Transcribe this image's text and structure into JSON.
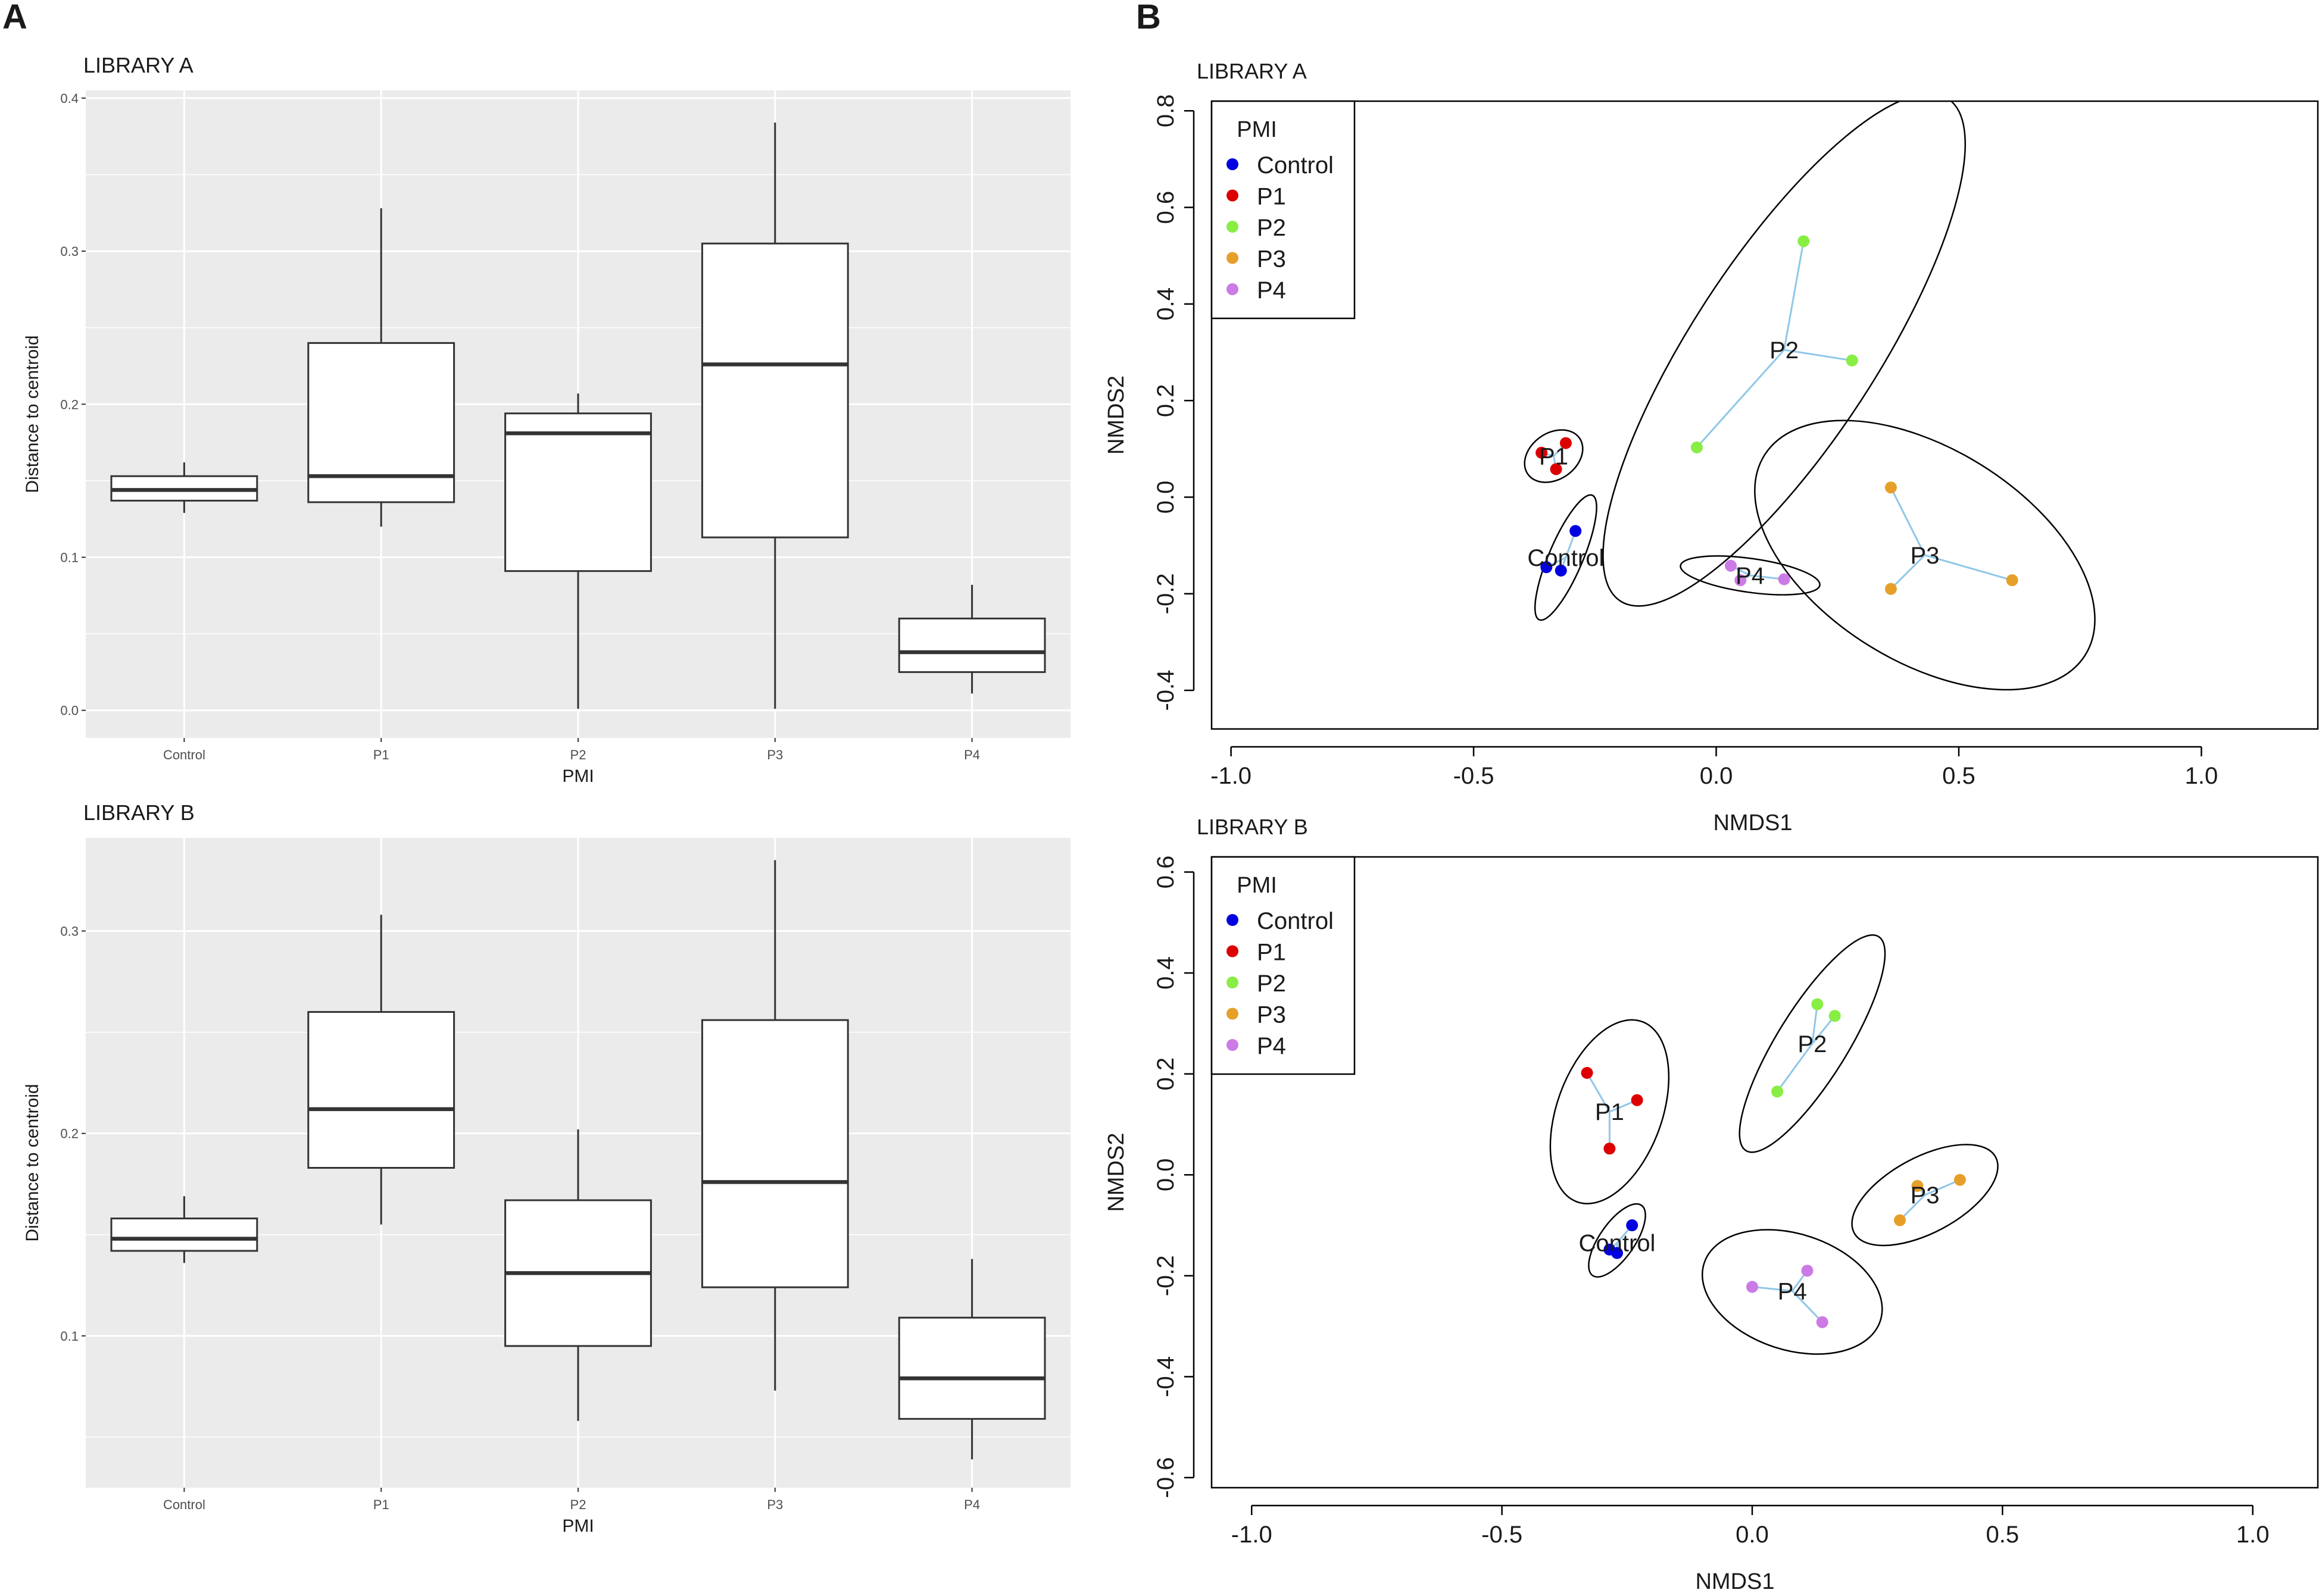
{
  "panel_labels": {
    "left": "A",
    "right": "B"
  },
  "colors": {
    "panel_bg": "#ebebeb",
    "grid": "#ffffff",
    "box_line": "#333333",
    "spider": "#8fc7e8",
    "ellipse": "#000000"
  },
  "chart_data": [
    {
      "type": "box",
      "title": "LIBRARY A",
      "xlabel": "PMI",
      "ylabel": "Distance to centroid",
      "categories": [
        "Control",
        "P1",
        "P2",
        "P3",
        "P4"
      ],
      "ylim": [
        -0.018,
        0.405
      ],
      "yticks": [
        0.0,
        0.1,
        0.2,
        0.3,
        0.4
      ],
      "ytick_labels": [
        "0.0",
        "0.1",
        "0.2",
        "0.3",
        "0.4"
      ],
      "boxes": [
        {
          "min": 0.129,
          "q1": 0.137,
          "median": 0.144,
          "q3": 0.153,
          "max": 0.162
        },
        {
          "min": 0.12,
          "q1": 0.136,
          "median": 0.153,
          "q3": 0.24,
          "max": 0.328
        },
        {
          "min": 0.001,
          "q1": 0.091,
          "median": 0.181,
          "q3": 0.194,
          "max": 0.207
        },
        {
          "min": 0.001,
          "q1": 0.113,
          "median": 0.226,
          "q3": 0.305,
          "max": 0.384
        },
        {
          "min": 0.011,
          "q1": 0.025,
          "median": 0.038,
          "q3": 0.06,
          "max": 0.082
        }
      ]
    },
    {
      "type": "box",
      "title": "LIBRARY B",
      "xlabel": "PMI",
      "ylabel": "Distance to centroid",
      "categories": [
        "Control",
        "P1",
        "P2",
        "P3",
        "P4"
      ],
      "ylim": [
        0.025,
        0.346
      ],
      "yticks": [
        0.1,
        0.2,
        0.3
      ],
      "ytick_labels": [
        "0.1",
        "0.2",
        "0.3"
      ],
      "boxes": [
        {
          "min": 0.136,
          "q1": 0.142,
          "median": 0.148,
          "q3": 0.158,
          "max": 0.169
        },
        {
          "min": 0.155,
          "q1": 0.183,
          "median": 0.212,
          "q3": 0.26,
          "max": 0.308
        },
        {
          "min": 0.058,
          "q1": 0.095,
          "median": 0.131,
          "q3": 0.167,
          "max": 0.202
        },
        {
          "min": 0.073,
          "q1": 0.124,
          "median": 0.176,
          "q3": 0.256,
          "max": 0.335
        },
        {
          "min": 0.039,
          "q1": 0.059,
          "median": 0.079,
          "q3": 0.109,
          "max": 0.138
        }
      ]
    },
    {
      "type": "scatter",
      "title": "LIBRARY A",
      "xlabel": "NMDS1",
      "ylabel": "NMDS2",
      "xlim": [
        -1.04,
        1.24
      ],
      "ylim": [
        -0.48,
        0.82
      ],
      "xticks": [
        -1.0,
        -0.5,
        0.0,
        0.5,
        1.0
      ],
      "xtick_labels": [
        "-1.0",
        "-0.5",
        "0.0",
        "0.5",
        "1.0"
      ],
      "yticks": [
        -0.4,
        -0.2,
        0.0,
        0.2,
        0.4,
        0.6,
        0.8
      ],
      "ytick_labels": [
        "-0.4",
        "-0.2",
        "0.0",
        "0.2",
        "0.4",
        "0.6",
        "0.8"
      ],
      "legend_title": "PMI",
      "legend_position": "top-left",
      "groups": [
        {
          "name": "Control",
          "color": "#0000e0",
          "centroid": [
            -0.31,
            -0.125
          ],
          "points": [
            [
              -0.29,
              -0.07
            ],
            [
              -0.35,
              -0.145
            ],
            [
              -0.32,
              -0.152
            ]
          ],
          "ellipse": {
            "cx": -0.31,
            "cy": -0.125,
            "rx": 0.14,
            "ry": 0.035,
            "angle": 67
          }
        },
        {
          "name": "P1",
          "color": "#dc0000",
          "centroid": [
            -0.335,
            0.085
          ],
          "points": [
            [
              -0.36,
              0.092
            ],
            [
              -0.31,
              0.112
            ],
            [
              -0.33,
              0.058
            ]
          ],
          "ellipse": {
            "cx": -0.335,
            "cy": 0.085,
            "rx": 0.065,
            "ry": 0.048,
            "angle": 35
          }
        },
        {
          "name": "P2",
          "color": "#88ee44",
          "centroid": [
            0.14,
            0.305
          ],
          "points": [
            [
              0.18,
              0.53
            ],
            [
              0.28,
              0.283
            ],
            [
              -0.04,
              0.103
            ]
          ],
          "ellipse": {
            "cx": 0.14,
            "cy": 0.305,
            "rx": 0.62,
            "ry": 0.19,
            "angle": 57
          }
        },
        {
          "name": "P3",
          "color": "#e6a02a",
          "centroid": [
            0.43,
            -0.12
          ],
          "points": [
            [
              0.36,
              0.02
            ],
            [
              0.61,
              -0.172
            ],
            [
              0.36,
              -0.19
            ]
          ],
          "ellipse": {
            "cx": 0.43,
            "cy": -0.12,
            "rx": 0.39,
            "ry": 0.22,
            "angle": -32
          }
        },
        {
          "name": "P4",
          "color": "#cc7ae6",
          "centroid": [
            0.07,
            -0.162
          ],
          "points": [
            [
              0.03,
              -0.142
            ],
            [
              0.14,
              -0.17
            ],
            [
              0.05,
              -0.172
            ]
          ],
          "ellipse": {
            "cx": 0.07,
            "cy": -0.162,
            "rx": 0.145,
            "ry": 0.035,
            "angle": -8
          }
        }
      ]
    },
    {
      "type": "scatter",
      "title": "LIBRARY B",
      "xlabel": "NMDS1",
      "ylabel": "NMDS2",
      "xlim": [
        -1.08,
        1.13
      ],
      "ylim": [
        -0.62,
        0.63
      ],
      "xticks": [
        -1.0,
        -0.5,
        0.0,
        0.5,
        1.0
      ],
      "xtick_labels": [
        "-1.0",
        "-0.5",
        "0.0",
        "0.5",
        "1.0"
      ],
      "yticks": [
        -0.6,
        -0.4,
        -0.2,
        0.0,
        0.2,
        0.4,
        0.6
      ],
      "ytick_labels": [
        "-0.6",
        "-0.4",
        "-0.2",
        "0.0",
        "0.2",
        "0.4",
        "0.6"
      ],
      "legend_title": "PMI",
      "legend_position": "top-left",
      "groups": [
        {
          "name": "Control",
          "color": "#0000e0",
          "centroid": [
            -0.27,
            -0.135
          ],
          "points": [
            [
              -0.24,
              -0.1
            ],
            [
              -0.285,
              -0.148
            ],
            [
              -0.27,
              -0.155
            ]
          ],
          "ellipse": {
            "cx": -0.27,
            "cy": -0.13,
            "rx": 0.085,
            "ry": 0.035,
            "angle": 55
          }
        },
        {
          "name": "P1",
          "color": "#dc0000",
          "centroid": [
            -0.285,
            0.125
          ],
          "points": [
            [
              -0.33,
              0.202
            ],
            [
              -0.23,
              0.148
            ],
            [
              -0.285,
              0.052
            ]
          ],
          "ellipse": {
            "cx": -0.285,
            "cy": 0.125,
            "rx": 0.19,
            "ry": 0.105,
            "angle": 70
          }
        },
        {
          "name": "P2",
          "color": "#88ee44",
          "centroid": [
            0.12,
            0.26
          ],
          "points": [
            [
              0.13,
              0.338
            ],
            [
              0.165,
              0.315
            ],
            [
              0.05,
              0.165
            ]
          ],
          "ellipse": {
            "cx": 0.12,
            "cy": 0.26,
            "rx": 0.25,
            "ry": 0.07,
            "angle": 58
          }
        },
        {
          "name": "P3",
          "color": "#e6a02a",
          "centroid": [
            0.345,
            -0.04
          ],
          "points": [
            [
              0.33,
              -0.022
            ],
            [
              0.415,
              -0.01
            ],
            [
              0.295,
              -0.09
            ]
          ],
          "ellipse": {
            "cx": 0.345,
            "cy": -0.04,
            "rx": 0.16,
            "ry": 0.075,
            "angle": 28
          }
        },
        {
          "name": "P4",
          "color": "#cc7ae6",
          "centroid": [
            0.08,
            -0.23
          ],
          "points": [
            [
              0.0,
              -0.222
            ],
            [
              0.11,
              -0.19
            ],
            [
              0.14,
              -0.292
            ]
          ],
          "ellipse": {
            "cx": 0.08,
            "cy": -0.232,
            "rx": 0.185,
            "ry": 0.115,
            "angle": -18
          }
        }
      ]
    }
  ]
}
